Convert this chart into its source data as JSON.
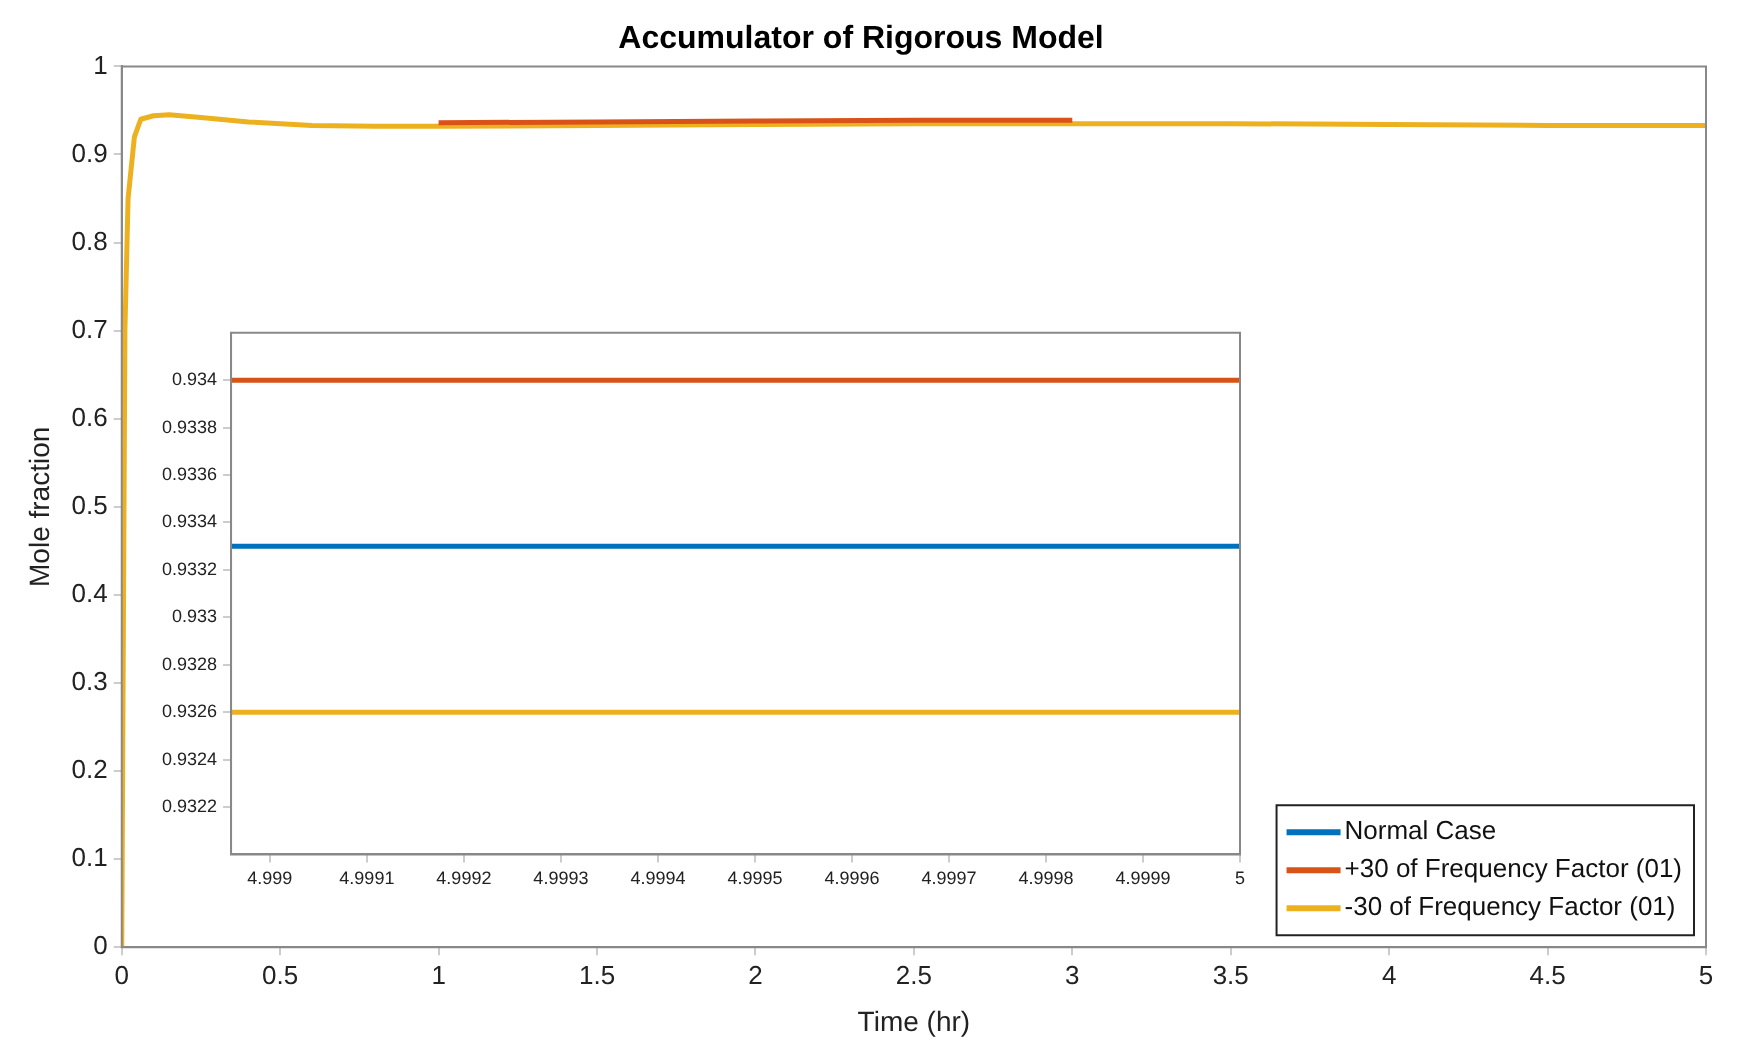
{
  "chart_data": [
    {
      "type": "line",
      "title": "Accumulator of Rigorous Model",
      "xlabel": "Time (hr)",
      "ylabel": "Mole fraction",
      "x": [
        0,
        0.01,
        0.02,
        0.04,
        0.06,
        0.1,
        0.15,
        0.25,
        0.4,
        0.6,
        0.8,
        1,
        1.5,
        2,
        2.5,
        3,
        3.5,
        4,
        4.5,
        5
      ],
      "series": [
        {
          "name": "Normal Case",
          "color": "#0072bd",
          "values": [
            null,
            null,
            null,
            null,
            null,
            null,
            null,
            null,
            null,
            null,
            null,
            null,
            null,
            null,
            null,
            null,
            null,
            null,
            null,
            null
          ]
        },
        {
          "name": "+30 of Frequency Factor (01)",
          "color": "#d95319",
          "values": [
            null,
            null,
            null,
            null,
            null,
            null,
            null,
            null,
            null,
            null,
            null,
            0.936,
            0.937,
            0.938,
            0.939,
            0.939,
            null,
            null,
            null,
            null
          ]
        },
        {
          "name": "-30 of Frequency Factor (01)",
          "color": "#edb120",
          "values": [
            0,
            0.7,
            0.85,
            0.92,
            0.94,
            0.944,
            0.945,
            0.942,
            0.937,
            0.933,
            0.932,
            0.932,
            0.933,
            0.934,
            0.935,
            0.935,
            0.935,
            0.934,
            0.933,
            0.933
          ]
        }
      ],
      "xlim": [
        0,
        5
      ],
      "xticks": [
        0,
        0.5,
        1,
        1.5,
        2,
        2.5,
        3,
        3.5,
        4,
        4.5,
        5
      ],
      "ylim": [
        0,
        1
      ],
      "yticks": [
        0,
        0.1,
        0.2,
        0.3,
        0.4,
        0.5,
        0.6,
        0.7,
        0.8,
        0.9,
        1
      ],
      "legend": "bottom right"
    },
    {
      "type": "line",
      "x": [
        4.99896,
        5
      ],
      "series": [
        {
          "color": "#0072bd",
          "values": [
            0.9333,
            0.9333
          ]
        },
        {
          "color": "#d95319",
          "values": [
            0.934,
            0.934
          ]
        },
        {
          "color": "#edb120",
          "values": [
            0.9326,
            0.9326
          ]
        }
      ],
      "xlim": [
        4.99896,
        5
      ],
      "xticks": [
        4.999,
        4.9991,
        4.9992,
        4.9993,
        4.9994,
        4.9995,
        4.9996,
        4.9997,
        4.9998,
        4.9999,
        5
      ],
      "ylim": [
        0.932,
        0.9342
      ],
      "yticks": [
        0.9322,
        0.9324,
        0.9326,
        0.9328,
        0.933,
        0.9332,
        0.9334,
        0.9336,
        0.9338,
        0.934
      ]
    }
  ]
}
